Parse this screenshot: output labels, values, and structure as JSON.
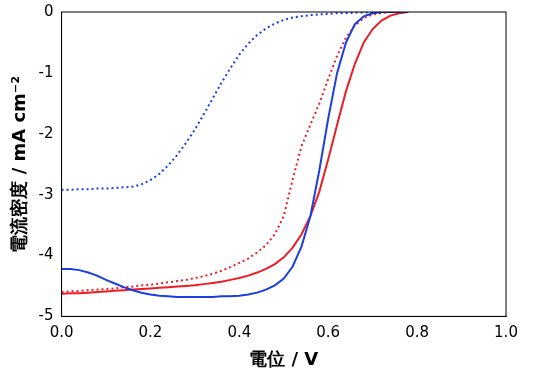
{
  "chart_data": {
    "type": "line",
    "x_label": "電位 / V",
    "y_label": "電流密度 / mA cm⁻²",
    "xlim": [
      0,
      1
    ],
    "ylim": [
      -5,
      0
    ],
    "xticks": [
      {
        "value": 0,
        "label": "0.0"
      },
      0.2,
      0.4,
      0.6,
      0.8,
      {
        "value": 1,
        "label": "1.0"
      }
    ],
    "yticks": [
      -5,
      -4,
      -3,
      -2,
      -1,
      0
    ],
    "grid": false,
    "x": [
      0,
      0.02,
      0.04,
      0.06,
      0.08,
      0.1,
      0.12,
      0.14,
      0.16,
      0.18,
      0.2,
      0.22,
      0.24,
      0.26,
      0.28,
      0.3,
      0.32,
      0.34,
      0.36,
      0.38,
      0.4,
      0.42,
      0.44,
      0.46,
      0.48,
      0.5,
      0.52,
      0.54,
      0.56,
      0.58,
      0.6,
      0.62,
      0.64,
      0.66,
      0.68,
      0.7,
      0.72,
      0.74,
      0.76,
      0.78
    ],
    "series": [
      {
        "color": "#1a3fe0",
        "line_style": "solid",
        "values": [
          -4.22,
          -4.22,
          -4.24,
          -4.28,
          -4.33,
          -4.4,
          -4.46,
          -4.52,
          -4.57,
          -4.61,
          -4.64,
          -4.66,
          -4.67,
          -4.68,
          -4.68,
          -4.68,
          -4.68,
          -4.68,
          -4.67,
          -4.67,
          -4.66,
          -4.64,
          -4.61,
          -4.56,
          -4.49,
          -4.38,
          -4.18,
          -3.85,
          -3.35,
          -2.6,
          -1.75,
          -1.0,
          -0.5,
          -0.2,
          -0.07,
          -0.02,
          0,
          0,
          0,
          0
        ]
      },
      {
        "color": "#1a3fe0",
        "line_style": "dotted",
        "values": [
          -2.92,
          -2.92,
          -2.91,
          -2.91,
          -2.9,
          -2.9,
          -2.89,
          -2.88,
          -2.87,
          -2.83,
          -2.76,
          -2.66,
          -2.52,
          -2.35,
          -2.15,
          -1.93,
          -1.68,
          -1.42,
          -1.16,
          -0.92,
          -0.7,
          -0.52,
          -0.38,
          -0.27,
          -0.19,
          -0.13,
          -0.09,
          -0.07,
          -0.05,
          -0.04,
          -0.03,
          -0.02,
          -0.02,
          -0.01,
          -0.01,
          0,
          0,
          0,
          0,
          0
        ]
      },
      {
        "color": "#ee1c25",
        "line_style": "solid",
        "values": [
          -4.63,
          -4.62,
          -4.62,
          -4.61,
          -4.6,
          -4.59,
          -4.58,
          -4.57,
          -4.56,
          -4.55,
          -4.54,
          -4.53,
          -4.52,
          -4.51,
          -4.5,
          -4.49,
          -4.47,
          -4.45,
          -4.43,
          -4.4,
          -4.37,
          -4.33,
          -4.28,
          -4.22,
          -4.14,
          -4.03,
          -3.87,
          -3.65,
          -3.35,
          -2.95,
          -2.42,
          -1.85,
          -1.3,
          -0.85,
          -0.5,
          -0.28,
          -0.14,
          -0.06,
          -0.02,
          0
        ]
      },
      {
        "color": "#ee1c25",
        "line_style": "dotted",
        "values": [
          -4.6,
          -4.59,
          -4.58,
          -4.57,
          -4.56,
          -4.55,
          -4.54,
          -4.52,
          -4.51,
          -4.49,
          -4.48,
          -4.46,
          -4.44,
          -4.42,
          -4.4,
          -4.37,
          -4.34,
          -4.3,
          -4.25,
          -4.19,
          -4.12,
          -4.05,
          -3.95,
          -3.83,
          -3.65,
          -3.35,
          -2.75,
          -2.2,
          -1.85,
          -1.5,
          -1.1,
          -0.72,
          -0.42,
          -0.22,
          -0.1,
          -0.04,
          -0.02,
          0,
          0,
          0
        ]
      }
    ]
  }
}
